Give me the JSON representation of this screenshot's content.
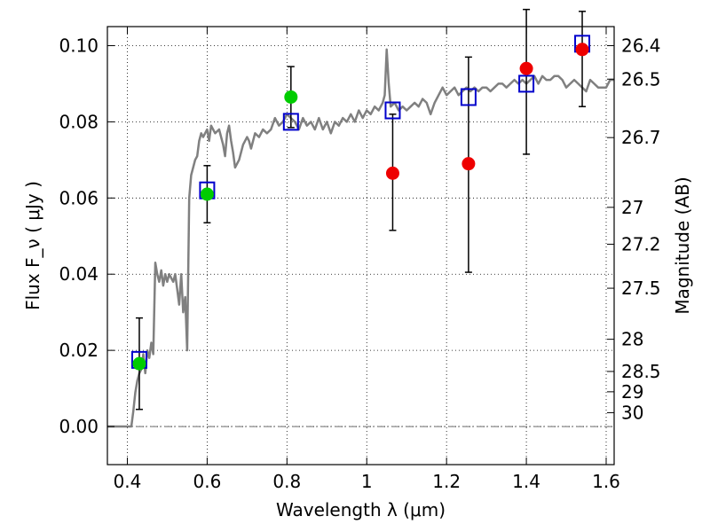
{
  "chart_data": {
    "type": "scatter",
    "xlabel": "Wavelength  λ (μm)",
    "ylabel": "Flux  F_ν  ( μJy )",
    "y2label": "Magnitude (AB)",
    "xlim": [
      0.35,
      1.62
    ],
    "ylim": [
      -0.01,
      0.105
    ],
    "grid": true,
    "x_ticks": [
      0.4,
      0.6,
      0.8,
      1.0,
      1.2,
      1.4,
      1.6
    ],
    "x_tick_labels": [
      "0.4",
      "0.6",
      "0.8",
      "1",
      "1.2",
      "1.4",
      "1.6"
    ],
    "y_ticks": [
      0.0,
      0.02,
      0.04,
      0.06,
      0.08,
      0.1
    ],
    "y_tick_labels": [
      "0.00",
      "0.02",
      "0.04",
      "0.06",
      "0.08",
      "0.10"
    ],
    "mag_ticks": [
      26.4,
      26.5,
      26.7,
      27,
      27.2,
      27.5,
      28,
      28.5,
      29,
      30
    ],
    "mag_tick_labels": [
      "26.4",
      "26.5",
      "26.7",
      "27",
      "27.2",
      "27.5",
      "28",
      "28.5",
      "29",
      "30"
    ],
    "series": [
      {
        "kind": "line",
        "color": "#808080",
        "points": [
          [
            0.35,
            0.0
          ],
          [
            0.41,
            0.0
          ],
          [
            0.415,
            0.004
          ],
          [
            0.42,
            0.009
          ],
          [
            0.425,
            0.012
          ],
          [
            0.43,
            0.014
          ],
          [
            0.435,
            0.015
          ],
          [
            0.44,
            0.019
          ],
          [
            0.445,
            0.014
          ],
          [
            0.45,
            0.02
          ],
          [
            0.455,
            0.018
          ],
          [
            0.46,
            0.022
          ],
          [
            0.465,
            0.019
          ],
          [
            0.47,
            0.043
          ],
          [
            0.475,
            0.04
          ],
          [
            0.48,
            0.038
          ],
          [
            0.485,
            0.041
          ],
          [
            0.49,
            0.037
          ],
          [
            0.495,
            0.04
          ],
          [
            0.5,
            0.038
          ],
          [
            0.505,
            0.04
          ],
          [
            0.51,
            0.039
          ],
          [
            0.515,
            0.038
          ],
          [
            0.52,
            0.04
          ],
          [
            0.525,
            0.036
          ],
          [
            0.53,
            0.032
          ],
          [
            0.535,
            0.04
          ],
          [
            0.54,
            0.03
          ],
          [
            0.545,
            0.034
          ],
          [
            0.55,
            0.02
          ],
          [
            0.555,
            0.06
          ],
          [
            0.56,
            0.066
          ],
          [
            0.57,
            0.07
          ],
          [
            0.575,
            0.071
          ],
          [
            0.58,
            0.075
          ],
          [
            0.585,
            0.077
          ],
          [
            0.59,
            0.076
          ],
          [
            0.6,
            0.078
          ],
          [
            0.605,
            0.075
          ],
          [
            0.61,
            0.079
          ],
          [
            0.62,
            0.077
          ],
          [
            0.63,
            0.078
          ],
          [
            0.64,
            0.074
          ],
          [
            0.645,
            0.071
          ],
          [
            0.65,
            0.077
          ],
          [
            0.655,
            0.079
          ],
          [
            0.66,
            0.075
          ],
          [
            0.665,
            0.072
          ],
          [
            0.67,
            0.068
          ],
          [
            0.68,
            0.07
          ],
          [
            0.69,
            0.074
          ],
          [
            0.7,
            0.076
          ],
          [
            0.705,
            0.075
          ],
          [
            0.71,
            0.073
          ],
          [
            0.72,
            0.077
          ],
          [
            0.73,
            0.076
          ],
          [
            0.74,
            0.078
          ],
          [
            0.75,
            0.077
          ],
          [
            0.76,
            0.078
          ],
          [
            0.77,
            0.081
          ],
          [
            0.78,
            0.079
          ],
          [
            0.79,
            0.08
          ],
          [
            0.8,
            0.082
          ],
          [
            0.81,
            0.081
          ],
          [
            0.82,
            0.08
          ],
          [
            0.83,
            0.078
          ],
          [
            0.84,
            0.081
          ],
          [
            0.85,
            0.079
          ],
          [
            0.86,
            0.08
          ],
          [
            0.87,
            0.078
          ],
          [
            0.88,
            0.081
          ],
          [
            0.89,
            0.078
          ],
          [
            0.9,
            0.08
          ],
          [
            0.91,
            0.077
          ],
          [
            0.92,
            0.08
          ],
          [
            0.93,
            0.079
          ],
          [
            0.94,
            0.081
          ],
          [
            0.95,
            0.08
          ],
          [
            0.96,
            0.082
          ],
          [
            0.97,
            0.08
          ],
          [
            0.98,
            0.083
          ],
          [
            0.99,
            0.081
          ],
          [
            1.0,
            0.083
          ],
          [
            1.01,
            0.082
          ],
          [
            1.02,
            0.084
          ],
          [
            1.03,
            0.083
          ],
          [
            1.04,
            0.085
          ],
          [
            1.045,
            0.087
          ],
          [
            1.05,
            0.099
          ],
          [
            1.055,
            0.09
          ],
          [
            1.06,
            0.084
          ],
          [
            1.07,
            0.085
          ],
          [
            1.08,
            0.083
          ],
          [
            1.09,
            0.084
          ],
          [
            1.1,
            0.083
          ],
          [
            1.11,
            0.084
          ],
          [
            1.12,
            0.085
          ],
          [
            1.13,
            0.084
          ],
          [
            1.14,
            0.086
          ],
          [
            1.15,
            0.085
          ],
          [
            1.16,
            0.082
          ],
          [
            1.17,
            0.085
          ],
          [
            1.18,
            0.087
          ],
          [
            1.19,
            0.089
          ],
          [
            1.2,
            0.087
          ],
          [
            1.21,
            0.088
          ],
          [
            1.22,
            0.089
          ],
          [
            1.23,
            0.087
          ],
          [
            1.24,
            0.088
          ],
          [
            1.25,
            0.089
          ],
          [
            1.26,
            0.088
          ],
          [
            1.27,
            0.089
          ],
          [
            1.28,
            0.088
          ],
          [
            1.29,
            0.089
          ],
          [
            1.3,
            0.089
          ],
          [
            1.31,
            0.088
          ],
          [
            1.32,
            0.089
          ],
          [
            1.33,
            0.09
          ],
          [
            1.34,
            0.09
          ],
          [
            1.35,
            0.089
          ],
          [
            1.36,
            0.09
          ],
          [
            1.37,
            0.091
          ],
          [
            1.38,
            0.09
          ],
          [
            1.39,
            0.091
          ],
          [
            1.4,
            0.09
          ],
          [
            1.41,
            0.091
          ],
          [
            1.42,
            0.092
          ],
          [
            1.43,
            0.09
          ],
          [
            1.44,
            0.092
          ],
          [
            1.45,
            0.091
          ],
          [
            1.46,
            0.091
          ],
          [
            1.47,
            0.092
          ],
          [
            1.48,
            0.092
          ],
          [
            1.49,
            0.091
          ],
          [
            1.5,
            0.089
          ],
          [
            1.51,
            0.09
          ],
          [
            1.52,
            0.091
          ],
          [
            1.53,
            0.09
          ],
          [
            1.54,
            0.089
          ],
          [
            1.55,
            0.088
          ],
          [
            1.56,
            0.091
          ],
          [
            1.57,
            0.09
          ],
          [
            1.58,
            0.089
          ],
          [
            1.59,
            0.089
          ],
          [
            1.6,
            0.089
          ],
          [
            1.61,
            0.091
          ],
          [
            1.62,
            0.091
          ]
        ]
      },
      {
        "kind": "errorbar",
        "color": "#000000",
        "points": [
          {
            "x": 0.43,
            "lo": 0.0045,
            "hi": 0.0285
          },
          {
            "x": 0.6,
            "lo": 0.0535,
            "hi": 0.0685
          },
          {
            "x": 0.81,
            "lo": 0.0785,
            "hi": 0.0945
          },
          {
            "x": 1.065,
            "lo": 0.0515,
            "hi": 0.082
          },
          {
            "x": 1.255,
            "lo": 0.0405,
            "hi": 0.097
          },
          {
            "x": 1.4,
            "lo": 0.0715,
            "hi": 0.1095
          },
          {
            "x": 1.54,
            "lo": 0.084,
            "hi": 0.109
          }
        ]
      },
      {
        "kind": "square",
        "color": "#0000cc",
        "points": [
          [
            0.43,
            0.0175
          ],
          [
            0.6,
            0.062
          ],
          [
            0.81,
            0.08
          ],
          [
            1.065,
            0.083
          ],
          [
            1.255,
            0.0865
          ],
          [
            1.4,
            0.09
          ],
          [
            1.54,
            0.1005
          ]
        ]
      },
      {
        "kind": "circle",
        "color": "#00cc00",
        "points": [
          [
            0.43,
            0.0165
          ],
          [
            0.6,
            0.061
          ],
          [
            0.81,
            0.0865
          ]
        ]
      },
      {
        "kind": "circle",
        "color": "#ee0000",
        "points": [
          [
            1.065,
            0.0665
          ],
          [
            1.255,
            0.069
          ],
          [
            1.4,
            0.094
          ],
          [
            1.54,
            0.099
          ]
        ]
      }
    ]
  }
}
